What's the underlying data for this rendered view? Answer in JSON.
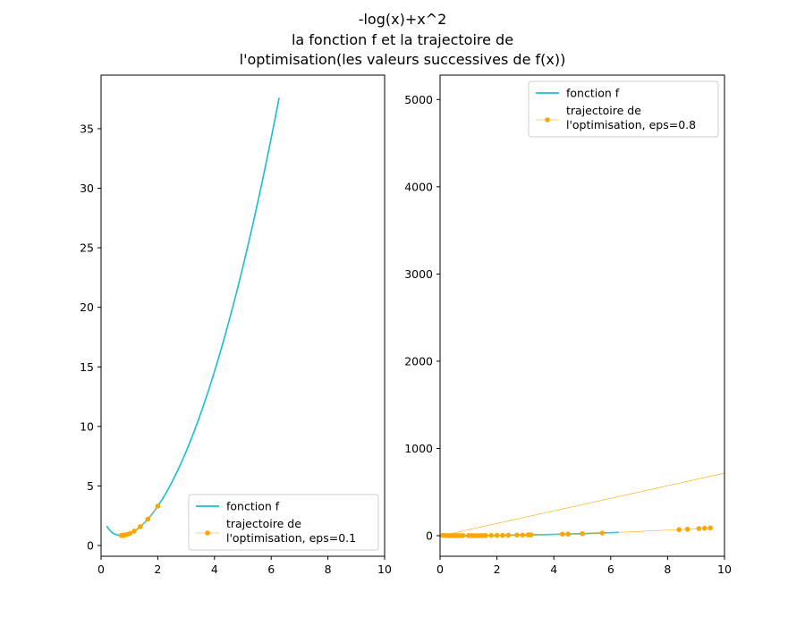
{
  "figure": {
    "title_lines": [
      "-log(x)+x^2",
      "la fonction f et la trajectoire de",
      "l'optimisation(les valeurs successives de f(x))"
    ]
  },
  "colors": {
    "function": "#17becf",
    "trajectory": "#ffa500",
    "axis": "#000000"
  },
  "chart_data": [
    {
      "type": "line",
      "title": "",
      "xlabel": "",
      "ylabel": "",
      "xlim": [
        0,
        10
      ],
      "ylim": [
        -0.9,
        39.5
      ],
      "xticks": [
        0,
        2,
        4,
        6,
        8,
        10
      ],
      "yticks": [
        0,
        5,
        10,
        15,
        20,
        25,
        30,
        35
      ],
      "legend": {
        "location": "lower-right"
      },
      "series": [
        {
          "name": "fonction f",
          "kind": "line",
          "formula": "-log(x)+x^2",
          "x_range": [
            0.2,
            6.28
          ],
          "samples": 80
        },
        {
          "name": "trajectoire de\nl'optimisation, eps=0.1",
          "kind": "line-markers",
          "x": [
            2.0,
            1.65,
            1.38,
            1.17,
            1.02,
            0.92,
            0.85,
            0.8,
            0.77,
            0.74,
            0.72,
            0.71
          ],
          "y": [
            3.31,
            2.22,
            1.58,
            1.21,
            1.02,
            0.93,
            0.89,
            0.86,
            0.85,
            0.85,
            0.85,
            0.84
          ]
        }
      ]
    },
    {
      "type": "line",
      "title": "",
      "xlabel": "",
      "ylabel": "",
      "xlim": [
        0,
        10
      ],
      "ylim": [
        -236,
        5280
      ],
      "xticks": [
        0,
        2,
        4,
        6,
        8,
        10
      ],
      "yticks": [
        0,
        1000,
        2000,
        3000,
        4000,
        5000
      ],
      "legend": {
        "location": "upper-right"
      },
      "series": [
        {
          "name": "fonction f",
          "kind": "line",
          "formula": "-log(x)+x^2",
          "x_range": [
            0.2,
            6.28
          ],
          "samples": 80
        },
        {
          "name": "trajectoire de\nl'optimisation, eps=0.8",
          "kind": "line-markers",
          "x": [
            0.1,
            0.2,
            0.3,
            0.4,
            0.5,
            0.6,
            0.7,
            0.8,
            1.0,
            1.1,
            1.2,
            1.3,
            1.4,
            1.5,
            1.6,
            1.8,
            2.0,
            2.2,
            2.4,
            2.7,
            2.9,
            3.1,
            3.2,
            4.3,
            4.5,
            5.0,
            5.7,
            8.4,
            8.7,
            9.1,
            9.3,
            9.5
          ],
          "y": [
            3,
            2,
            1,
            1,
            1,
            1,
            1,
            1,
            1,
            1,
            1,
            1,
            1,
            1,
            2,
            3,
            3,
            4,
            5,
            7,
            7,
            9,
            9,
            17,
            18,
            23,
            30,
            69,
            74,
            81,
            85,
            89
          ]
        }
      ]
    }
  ]
}
